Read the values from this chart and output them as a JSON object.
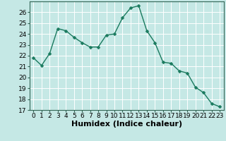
{
  "x": [
    0,
    1,
    2,
    3,
    4,
    5,
    6,
    7,
    8,
    9,
    10,
    11,
    12,
    13,
    14,
    15,
    16,
    17,
    18,
    19,
    20,
    21,
    22,
    23
  ],
  "y": [
    21.8,
    21.1,
    22.2,
    24.5,
    24.3,
    23.7,
    23.2,
    22.8,
    22.8,
    23.9,
    24.0,
    25.5,
    26.4,
    26.6,
    24.3,
    23.2,
    21.4,
    21.3,
    20.6,
    20.4,
    19.1,
    18.6,
    17.6,
    17.3
  ],
  "line_color": "#1a7a5e",
  "marker": "D",
  "marker_size": 2.5,
  "linewidth": 1.0,
  "xlabel": "Humidex (Indice chaleur)",
  "xlim": [
    -0.5,
    23.5
  ],
  "ylim": [
    17,
    27
  ],
  "yticks": [
    17,
    18,
    19,
    20,
    21,
    22,
    23,
    24,
    25,
    26
  ],
  "xticks": [
    0,
    1,
    2,
    3,
    4,
    5,
    6,
    7,
    8,
    9,
    10,
    11,
    12,
    13,
    14,
    15,
    16,
    17,
    18,
    19,
    20,
    21,
    22,
    23
  ],
  "xtick_labels": [
    "0",
    "1",
    "2",
    "3",
    "4",
    "5",
    "6",
    "7",
    "8",
    "9",
    "10",
    "11",
    "12",
    "13",
    "14",
    "15",
    "16",
    "17",
    "18",
    "19",
    "20",
    "21",
    "22",
    "23"
  ],
  "bg_color": "#c5e8e5",
  "grid_color": "#ffffff",
  "tick_fontsize": 6.5,
  "xlabel_fontsize": 8
}
